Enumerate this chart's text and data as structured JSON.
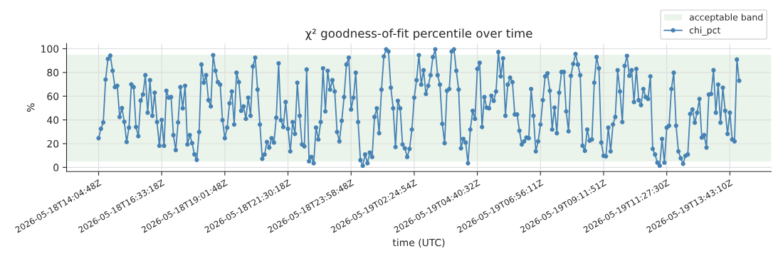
{
  "chart_data": {
    "type": "line",
    "title": "χ² goodness-of-fit percentile over time",
    "xlabel": "time (UTC)",
    "ylabel": "%",
    "categories": [
      "2026-05-18T14:04:48Z",
      null,
      null,
      null,
      null,
      null,
      null,
      null,
      null,
      null,
      null,
      null,
      null,
      null,
      null,
      null,
      null,
      null,
      null,
      null,
      null,
      null,
      null,
      null,
      null,
      null,
      null,
      "2026-05-18T16:33:18Z",
      null,
      null,
      null,
      null,
      null,
      null,
      null,
      null,
      null,
      null,
      null,
      null,
      null,
      null,
      null,
      null,
      null,
      null,
      null,
      null,
      null,
      null,
      null,
      null,
      null,
      null,
      "2026-05-18T19:01:48Z",
      null,
      null,
      null,
      null,
      null,
      null,
      null,
      null,
      null,
      null,
      null,
      null,
      null,
      null,
      null,
      null,
      null,
      null,
      null,
      null,
      null,
      null,
      null,
      null,
      null,
      null,
      "2026-05-18T21:30:18Z",
      null,
      null,
      null,
      null,
      null,
      null,
      null,
      null,
      null,
      null,
      null,
      null,
      null,
      null,
      null,
      null,
      null,
      null,
      null,
      null,
      null,
      null,
      null,
      null,
      null,
      null,
      "2026-05-18T23:58:48Z",
      null,
      null,
      null,
      null,
      null,
      null,
      null,
      null,
      null,
      null,
      null,
      null,
      null,
      null,
      null,
      null,
      null,
      null,
      null,
      null,
      null,
      null,
      null,
      null,
      null,
      null,
      "2026-05-19T02:24:54Z",
      null,
      null,
      null,
      null,
      null,
      null,
      null,
      null,
      null,
      null,
      null,
      null,
      null,
      null,
      null,
      null,
      null,
      null,
      null,
      null,
      null,
      null,
      null,
      null,
      null,
      null,
      "2026-05-19T04:40:32Z",
      null,
      null,
      null,
      null,
      null,
      null,
      null,
      null,
      null,
      null,
      null,
      null,
      null,
      null,
      null,
      null,
      null,
      null,
      null,
      null,
      null,
      null,
      null,
      null,
      null,
      null,
      "2026-05-19T06:56:11Z",
      null,
      null,
      null,
      null,
      null,
      null,
      null,
      null,
      null,
      null,
      null,
      null,
      null,
      null,
      null,
      null,
      null,
      null,
      null,
      null,
      null,
      null,
      null,
      null,
      null,
      null,
      "2026-05-19T09:11:51Z",
      null,
      null,
      null,
      null,
      null,
      null,
      null,
      null,
      null,
      null,
      null,
      null,
      null,
      null,
      null,
      null,
      null,
      null,
      null,
      null,
      null,
      null,
      null,
      null,
      null,
      null,
      "2026-05-19T11:27:30Z",
      null,
      null,
      null,
      null,
      null,
      null,
      null,
      null,
      null,
      null,
      null,
      null,
      null,
      null,
      null,
      null,
      null,
      null,
      null,
      null,
      null,
      null,
      null,
      null,
      null,
      null,
      "2026-05-19T13:43:10Z",
      null,
      null,
      null,
      null
    ],
    "series": [
      {
        "name": "chi_pct",
        "color": "#4682b4",
        "values": [
          24.6,
          32.5,
          37.9,
          74,
          91.4,
          94.2,
          81.4,
          67.7,
          68.8,
          42.5,
          50,
          38.4,
          21.4,
          33.5,
          70,
          67.7,
          34,
          26.3,
          56.3,
          61.4,
          77.7,
          46.1,
          73.5,
          43.5,
          63,
          38.2,
          18.2,
          40,
          18.2,
          64.6,
          58.8,
          59.3,
          27.2,
          14.6,
          37.9,
          67.7,
          49.8,
          68.8,
          19.3,
          27.2,
          20.4,
          11,
          6.3,
          29.8,
          86.7,
          71.4,
          77.7,
          56.7,
          51.4,
          94.6,
          81.4,
          71.9,
          69.8,
          39.8,
          24.6,
          33.5,
          54,
          64,
          36.1,
          79.8,
          71.9,
          47.7,
          51.4,
          40.9,
          58.8,
          43.5,
          85.1,
          92.5,
          65.6,
          36.1,
          7.2,
          10.9,
          21.4,
          16.7,
          24.6,
          20.9,
          41.9,
          87.7,
          39.8,
          34,
          55.1,
          32.5,
          13.5,
          38.2,
          28.2,
          71.4,
          43.5,
          19.3,
          17.7,
          82.5,
          5.1,
          8.8,
          3.5,
          33.5,
          23.5,
          38.2,
          83.5,
          47.2,
          81.4,
          65.6,
          73.5,
          64,
          29.8,
          21.9,
          39.3,
          59.3,
          86.7,
          92.5,
          48.8,
          58.8,
          79.8,
          38.2,
          6.1,
          1.4,
          10.9,
          3.5,
          12.5,
          8.8,
          42.5,
          49.8,
          28.8,
          65.6,
          93.5,
          99.5,
          97.7,
          67.2,
          49.8,
          17.2,
          56.1,
          49.8,
          19.3,
          16.1,
          8.8,
          15.6,
          31.9,
          58.8,
          73.5,
          94.6,
          69.8,
          81.9,
          61.9,
          68.8,
          77.7,
          93,
          99.5,
          77.7,
          69.8,
          36.7,
          20.4,
          64.6,
          66.1,
          97.7,
          99.5,
          81.4,
          65.6,
          16.1,
          24,
          20.9,
          3.5,
          31.9,
          47.7,
          40.9,
          83,
          88.2,
          34,
          59.3,
          50.4,
          49.8,
          60.4,
          56.1,
          64,
          97.2,
          76.7,
          91.9,
          43.5,
          69.8,
          75.6,
          71.9,
          44.6,
          44.6,
          30.9,
          19.3,
          21.9,
          25.1,
          24.6,
          66.1,
          43.5,
          13.5,
          21.9,
          36.1,
          56.7,
          76.7,
          79.3,
          64.6,
          31.9,
          50.4,
          28.8,
          63,
          80.4,
          80.4,
          47.2,
          30.4,
          77.2,
          87.2,
          95.6,
          86.7,
          77.7,
          18.2,
          14,
          31.9,
          22.5,
          23.5,
          71.4,
          93,
          83.5,
          20.9,
          9.8,
          9.3,
          33.5,
          13.5,
          36.1,
          42.5,
          81.9,
          64,
          38.2,
          85.6,
          94,
          77.2,
          81.9,
          55.1,
          83,
          56.7,
          52.5,
          66.1,
          59.3,
          57.7,
          76.7,
          15.6,
          10.9,
          4,
          1.4,
          24,
          4,
          33.5,
          35.1,
          66.1,
          79.8,
          35.1,
          13.5,
          7.7,
          3,
          9.8,
          10.9,
          45.1,
          48.8,
          37.7,
          46.1,
          57.7,
          25.1,
          27.2,
          16.7,
          61.4,
          61.9,
          81.9,
          46.1,
          69.8,
          37.7,
          67.2,
          47.7,
          28.2,
          46.1,
          23.5,
          21.9,
          90.9,
          73
        ]
      }
    ],
    "bands": [
      {
        "axis": "y",
        "from": 5,
        "to": 95,
        "label": "acceptable band",
        "color": "#eaf4ea"
      }
    ],
    "ylim": [
      -3.5,
      104.4
    ],
    "yticks": [
      0,
      20,
      40,
      60,
      80,
      100
    ],
    "grid": true,
    "legend": "top right",
    "marker": "circle",
    "line_style": "solid"
  }
}
